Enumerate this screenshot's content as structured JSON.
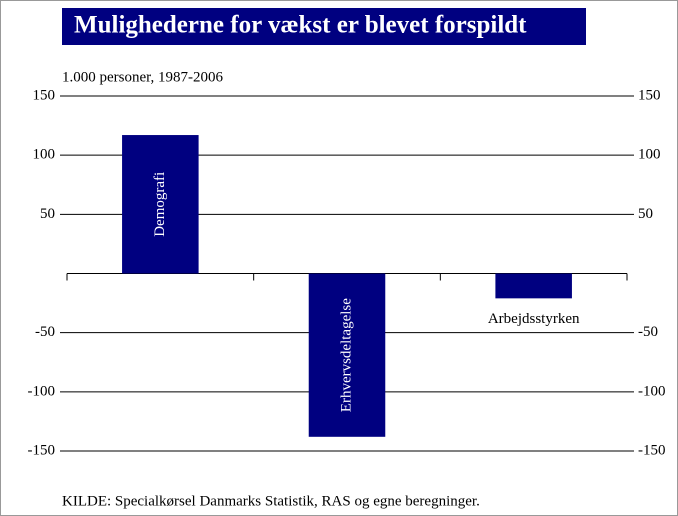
{
  "chart_data": {
    "type": "bar",
    "title": "Mulighederne for vækst er blevet forspildt",
    "subtitle": "1.000 personer, 1987-2006",
    "source": "KILDE: Specialkørsel Danmarks Statistik, RAS og egne beregninger.",
    "categories": [
      "Demografi",
      "Erhvervsdeltagelse",
      "Arbejdsstyrken"
    ],
    "values": [
      117,
      -138,
      -21
    ],
    "color": "#000080",
    "ylim": [
      -150,
      150
    ],
    "yticks": [
      -150,
      -100,
      -50,
      50,
      100,
      150
    ],
    "grid": true
  }
}
